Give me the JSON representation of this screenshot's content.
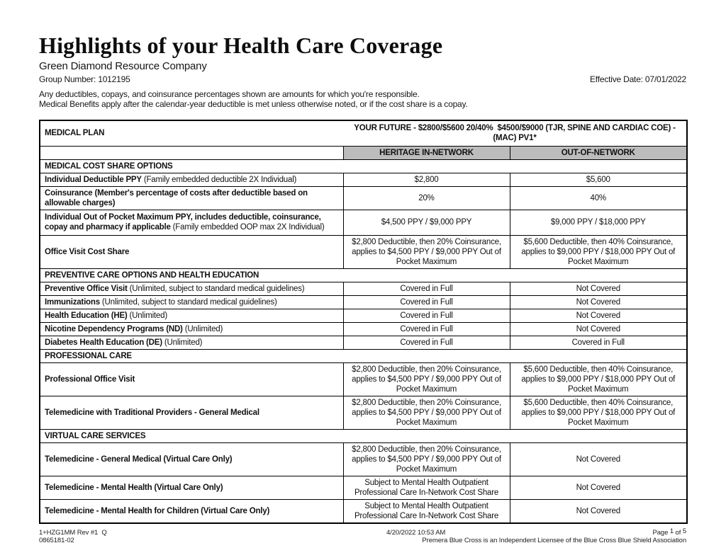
{
  "header": {
    "title": "Highlights of your Health Care Coverage",
    "company": "Green Diamond Resource Company",
    "group_number": "Group Number: 1012195",
    "effective_date": "Effective Date: 07/01/2022",
    "note_line1": "Any deductibles, copays, and coinsurance percentages shown are amounts for which you're responsible.",
    "note_line2": "Medical Benefits apply after the calendar-year deductible is met unless otherwise noted, or if the cost share is a copay."
  },
  "colors": {
    "network_header_gray": "#bcbcbc",
    "border_black": "#000000",
    "text_black": "#1a1a1a"
  },
  "table": {
    "plan_label": "MEDICAL PLAN",
    "plan_title": "YOUR FUTURE - $2800/$5600 20/40%  $4500/$9000 (TJR, SPINE AND CARDIAC COE) -  (MAC) PV1*",
    "col_in_network": "HERITAGE IN-NETWORK",
    "col_out_network": "OUT-OF-NETWORK",
    "rows": [
      {
        "label": "MEDICAL COST SHARE OPTIONS"
      },
      {
        "b": "Individual Deductible PPY",
        "r": " (Family embedded deductible 2X Individual)",
        "in": "$2,800",
        "out": "$5,600"
      },
      {
        "b": "Coinsurance (Member's percentage of costs after deductible based on allowable charges)",
        "r": "",
        "in": "20%",
        "out": "40%"
      },
      {
        "b": "Individual Out of Pocket Maximum PPY, includes deductible, coinsurance, copay and pharmacy if applicable",
        "r": " (Family embedded OOP max 2X Individual)",
        "in": "$4,500 PPY / $9,000 PPY",
        "out": "$9,000 PPY / $18,000 PPY"
      },
      {
        "b": "Office Visit Cost Share",
        "r": "",
        "in": "$2,800 Deductible, then 20% Coinsurance, applies to $4,500 PPY / $9,000 PPY Out of Pocket Maximum",
        "out": "$5,600 Deductible, then 40% Coinsurance, applies to $9,000 PPY / $18,000 PPY Out of Pocket Maximum"
      },
      {
        "label": "PREVENTIVE CARE OPTIONS AND HEALTH EDUCATION"
      },
      {
        "b": "Preventive Office Visit",
        "r": " (Unlimited, subject to standard medical guidelines)",
        "in": "Covered in Full",
        "out": "Not Covered"
      },
      {
        "b": "Immunizations",
        "r": " (Unlimited, subject to standard medical guidelines)",
        "in": "Covered in Full",
        "out": "Not Covered"
      },
      {
        "b": "Health Education (HE)",
        "r": " (Unlimited)",
        "in": "Covered in Full",
        "out": "Not Covered"
      },
      {
        "b": "Nicotine Dependency Programs (ND)",
        "r": " (Unlimited)",
        "in": "Covered in Full",
        "out": "Not Covered"
      },
      {
        "b": "Diabetes Health Education (DE)",
        "r": " (Unlimited)",
        "in": "Covered in Full",
        "out": "Covered in Full"
      },
      {
        "label": "PROFESSIONAL CARE"
      },
      {
        "b": "Professional Office Visit",
        "r": "",
        "in": "$2,800 Deductible, then 20% Coinsurance, applies to $4,500 PPY / $9,000 PPY Out of Pocket Maximum",
        "out": "$5,600 Deductible, then 40% Coinsurance, applies to $9,000 PPY / $18,000 PPY Out of Pocket Maximum"
      },
      {
        "b": "Telemedicine with Traditional Providers - General Medical",
        "r": "",
        "in": "$2,800 Deductible, then 20% Coinsurance, applies to $4,500 PPY / $9,000 PPY Out of Pocket Maximum",
        "out": "$5,600 Deductible, then 40% Coinsurance, applies to $9,000 PPY / $18,000 PPY Out of Pocket Maximum"
      },
      {
        "label": "VIRTUAL CARE SERVICES"
      },
      {
        "b": "Telemedicine - General Medical (Virtual Care Only)",
        "r": "",
        "in": "$2,800 Deductible, then 20% Coinsurance, applies to $4,500 PPY / $9,000 PPY Out of Pocket Maximum",
        "out": "Not Covered"
      },
      {
        "b": "Telemedicine - Mental Health (Virtual Care Only)",
        "r": "",
        "in": "Subject to Mental Health Outpatient Professional Care In-Network Cost Share",
        "out": "Not Covered"
      },
      {
        "b": "Telemedicine - Mental Health for Children (Virtual Care Only)",
        "r": "",
        "in": "Subject to Mental Health Outpatient Professional Care In-Network Cost Share",
        "out": "Not Covered"
      }
    ]
  },
  "footer": {
    "code_line1": "1+HZG1MM Rev #1  Q",
    "code_line2": "0865181-02",
    "timestamp": "4/20/2022 10:53 AM",
    "page_prefix": "Page ",
    "page_num": "1",
    "page_of": " of ",
    "page_total": "5",
    "licensee": "Premera Blue Cross is an Independent Licensee of the Blue Cross Blue Shield Association"
  }
}
